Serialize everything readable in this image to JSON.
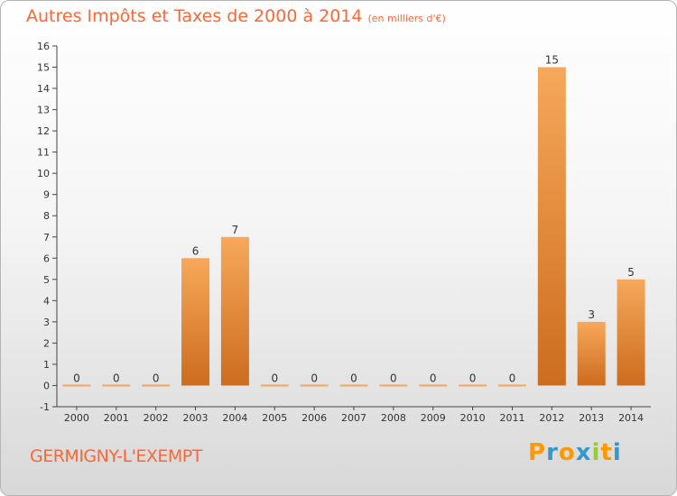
{
  "header": {
    "title": "Autres Impôts et Taxes de 2000 à 2014",
    "unit_note": "(en milliers d'€)"
  },
  "footer": {
    "commune": "GERMIGNY-L'EXEMPT",
    "logo": "Proxiti"
  },
  "colors": {
    "title": "#ff6633",
    "bar_top": "#f7a85a",
    "bar_bottom": "#cc6c1e",
    "logo_letters": [
      "#ff9900",
      "#3399cc",
      "#ff9900",
      "#3399cc",
      "#99cc33",
      "#ff9900",
      "#3399cc"
    ]
  },
  "chart_data": {
    "type": "bar",
    "title": "Autres Impôts et Taxes de 2000 à 2014",
    "xlabel": "",
    "ylabel": "en milliers d'€",
    "categories": [
      "2000",
      "2001",
      "2002",
      "2003",
      "2004",
      "2005",
      "2006",
      "2007",
      "2008",
      "2009",
      "2010",
      "2011",
      "2012",
      "2013",
      "2014"
    ],
    "values": [
      0,
      0,
      0,
      6,
      7,
      0,
      0,
      0,
      0,
      0,
      0,
      0,
      15,
      3,
      5
    ],
    "data_labels": [
      "0",
      "0",
      "0",
      "6",
      "7",
      "0",
      "0",
      "0",
      "0",
      "0",
      "0",
      "0",
      "15",
      "3",
      "5"
    ],
    "ylim": [
      -1,
      16
    ],
    "yticks": [
      "-1",
      "0",
      "1",
      "2",
      "3",
      "4",
      "5",
      "6",
      "7",
      "8",
      "9",
      "10",
      "11",
      "12",
      "13",
      "14",
      "15",
      "16"
    ],
    "grid": false,
    "legend": "none"
  }
}
